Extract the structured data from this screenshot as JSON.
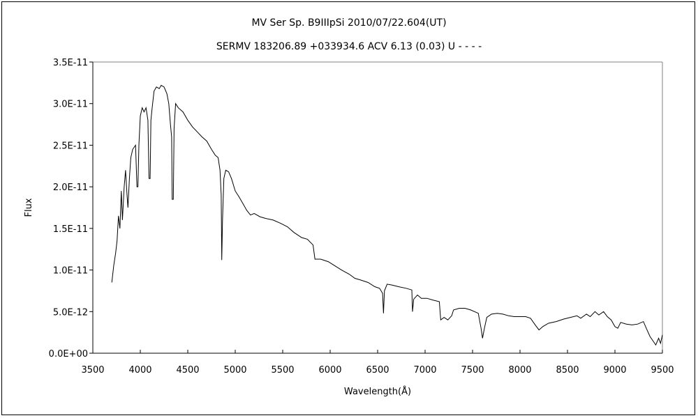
{
  "chart_data": {
    "type": "line",
    "title": "MV Ser    Sp. B9IIIpSi    2010/07/22.604(UT)",
    "subtitle": "SERMV 183206.89 +033934.6 ACV 6.13 (0.03) U - - - -",
    "xlabel": "Wavelength(Å)",
    "ylabel": "Flux",
    "xlim": [
      3500,
      9500
    ],
    "ylim": [
      0,
      3.5e-11
    ],
    "x_ticks": [
      3500,
      4000,
      4500,
      5000,
      5500,
      6000,
      6500,
      7000,
      7500,
      8000,
      8500,
      9000,
      9500
    ],
    "x_tick_labels": [
      "3500",
      "4000",
      "4500",
      "5000",
      "5500",
      "6000",
      "6500",
      "7000",
      "7500",
      "8000",
      "8500",
      "9000",
      "9500"
    ],
    "y_ticks": [
      0,
      5e-12,
      1e-11,
      1.5e-11,
      2e-11,
      2.5e-11,
      3e-11,
      3.5e-11
    ],
    "y_tick_labels": [
      "0.0E+00",
      "5.0E-12",
      "1.0E-11",
      "1.5E-11",
      "2.0E-11",
      "2.5E-11",
      "3.0E-11",
      "3.5E-11"
    ],
    "grid": false,
    "line_color": "#000000",
    "points": [
      [
        3700,
        8.5e-12
      ],
      [
        3720,
        1.05e-11
      ],
      [
        3740,
        1.2e-11
      ],
      [
        3755,
        1.35e-11
      ],
      [
        3770,
        1.65e-11
      ],
      [
        3785,
        1.5e-11
      ],
      [
        3800,
        1.95e-11
      ],
      [
        3812,
        1.6e-11
      ],
      [
        3830,
        2e-11
      ],
      [
        3845,
        2.2e-11
      ],
      [
        3860,
        1.9e-11
      ],
      [
        3870,
        1.75e-11
      ],
      [
        3885,
        2.1e-11
      ],
      [
        3900,
        2.35e-11
      ],
      [
        3920,
        2.45e-11
      ],
      [
        3950,
        2.5e-11
      ],
      [
        3965,
        2e-11
      ],
      [
        3975,
        2e-11
      ],
      [
        3985,
        2.5e-11
      ],
      [
        4000,
        2.85e-11
      ],
      [
        4020,
        2.95e-11
      ],
      [
        4040,
        2.9e-11
      ],
      [
        4060,
        2.95e-11
      ],
      [
        4080,
        2.8e-11
      ],
      [
        4092,
        2.1e-11
      ],
      [
        4104,
        2.1e-11
      ],
      [
        4112,
        2.8e-11
      ],
      [
        4125,
        2.95e-11
      ],
      [
        4145,
        3.15e-11
      ],
      [
        4170,
        3.2e-11
      ],
      [
        4200,
        3.18e-11
      ],
      [
        4220,
        3.22e-11
      ],
      [
        4250,
        3.2e-11
      ],
      [
        4280,
        3.12e-11
      ],
      [
        4300,
        3e-11
      ],
      [
        4318,
        2.75e-11
      ],
      [
        4330,
        2.6e-11
      ],
      [
        4336,
        1.85e-11
      ],
      [
        4348,
        1.85e-11
      ],
      [
        4356,
        2.7e-11
      ],
      [
        4372,
        3e-11
      ],
      [
        4400,
        2.95e-11
      ],
      [
        4450,
        2.9e-11
      ],
      [
        4500,
        2.8e-11
      ],
      [
        4550,
        2.72e-11
      ],
      [
        4600,
        2.66e-11
      ],
      [
        4650,
        2.6e-11
      ],
      [
        4700,
        2.55e-11
      ],
      [
        4750,
        2.45e-11
      ],
      [
        4790,
        2.38e-11
      ],
      [
        4820,
        2.35e-11
      ],
      [
        4840,
        2.2e-11
      ],
      [
        4852,
        1.9e-11
      ],
      [
        4858,
        1.12e-11
      ],
      [
        4866,
        1.6e-11
      ],
      [
        4880,
        2.1e-11
      ],
      [
        4900,
        2.2e-11
      ],
      [
        4930,
        2.18e-11
      ],
      [
        4960,
        2.1e-11
      ],
      [
        5000,
        1.95e-11
      ],
      [
        5040,
        1.88e-11
      ],
      [
        5080,
        1.8e-11
      ],
      [
        5120,
        1.72e-11
      ],
      [
        5160,
        1.66e-11
      ],
      [
        5200,
        1.68e-11
      ],
      [
        5260,
        1.64e-11
      ],
      [
        5320,
        1.62e-11
      ],
      [
        5400,
        1.6e-11
      ],
      [
        5480,
        1.56e-11
      ],
      [
        5550,
        1.52e-11
      ],
      [
        5620,
        1.45e-11
      ],
      [
        5700,
        1.39e-11
      ],
      [
        5760,
        1.37e-11
      ],
      [
        5820,
        1.3e-11
      ],
      [
        5840,
        1.13e-11
      ],
      [
        5900,
        1.13e-11
      ],
      [
        5980,
        1.1e-11
      ],
      [
        6050,
        1.05e-11
      ],
      [
        6120,
        1e-11
      ],
      [
        6200,
        9.5e-12
      ],
      [
        6260,
        9e-12
      ],
      [
        6320,
        8.8e-12
      ],
      [
        6400,
        8.5e-12
      ],
      [
        6470,
        8e-12
      ],
      [
        6520,
        7.8e-12
      ],
      [
        6552,
        7.2e-12
      ],
      [
        6562,
        4.8e-12
      ],
      [
        6572,
        7.5e-12
      ],
      [
        6600,
        8.3e-12
      ],
      [
        6650,
        8.2e-12
      ],
      [
        6720,
        8e-12
      ],
      [
        6800,
        7.8e-12
      ],
      [
        6860,
        7.6e-12
      ],
      [
        6868,
        5e-12
      ],
      [
        6880,
        6.5e-12
      ],
      [
        6920,
        7e-12
      ],
      [
        6960,
        6.6e-12
      ],
      [
        7020,
        6.6e-12
      ],
      [
        7080,
        6.4e-12
      ],
      [
        7150,
        6.2e-12
      ],
      [
        7165,
        4e-12
      ],
      [
        7200,
        4.3e-12
      ],
      [
        7240,
        4e-12
      ],
      [
        7280,
        4.5e-12
      ],
      [
        7300,
        5.2e-12
      ],
      [
        7360,
        5.4e-12
      ],
      [
        7420,
        5.4e-12
      ],
      [
        7480,
        5.2e-12
      ],
      [
        7560,
        4.8e-12
      ],
      [
        7590,
        3e-12
      ],
      [
        7605,
        1.8e-12
      ],
      [
        7625,
        3e-12
      ],
      [
        7650,
        4.3e-12
      ],
      [
        7700,
        4.7e-12
      ],
      [
        7760,
        4.8e-12
      ],
      [
        7820,
        4.7e-12
      ],
      [
        7880,
        4.5e-12
      ],
      [
        7940,
        4.4e-12
      ],
      [
        8000,
        4.4e-12
      ],
      [
        8060,
        4.4e-12
      ],
      [
        8110,
        4.2e-12
      ],
      [
        8160,
        3.4e-12
      ],
      [
        8200,
        2.8e-12
      ],
      [
        8240,
        3.2e-12
      ],
      [
        8300,
        3.6e-12
      ],
      [
        8380,
        3.8e-12
      ],
      [
        8460,
        4.1e-12
      ],
      [
        8530,
        4.3e-12
      ],
      [
        8600,
        4.5e-12
      ],
      [
        8640,
        4.2e-12
      ],
      [
        8700,
        4.7e-12
      ],
      [
        8740,
        4.4e-12
      ],
      [
        8790,
        5e-12
      ],
      [
        8830,
        4.6e-12
      ],
      [
        8880,
        5e-12
      ],
      [
        8920,
        4.4e-12
      ],
      [
        8960,
        4e-12
      ],
      [
        9000,
        3.2e-12
      ],
      [
        9030,
        3e-12
      ],
      [
        9060,
        3.7e-12
      ],
      [
        9120,
        3.5e-12
      ],
      [
        9180,
        3.4e-12
      ],
      [
        9240,
        3.5e-12
      ],
      [
        9300,
        3.8e-12
      ],
      [
        9330,
        3e-12
      ],
      [
        9370,
        2e-12
      ],
      [
        9400,
        1.5e-12
      ],
      [
        9430,
        1e-12
      ],
      [
        9460,
        1.8e-12
      ],
      [
        9480,
        1.2e-12
      ],
      [
        9500,
        2.2e-12
      ]
    ]
  }
}
